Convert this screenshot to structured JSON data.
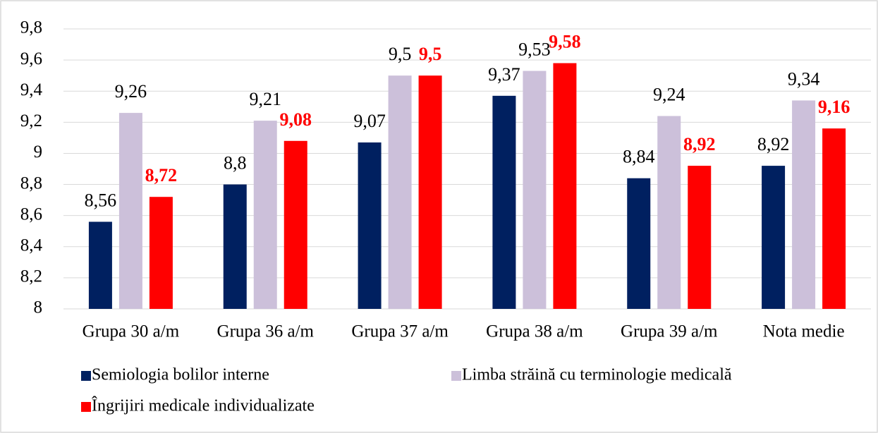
{
  "chart_data": {
    "type": "bar",
    "categories": [
      "Grupa 30 a/m",
      "Grupa 36 a/m",
      "Grupa 37 a/m",
      "Grupa 38 a/m",
      "Grupa 39 a/m",
      "Nota medie"
    ],
    "series": [
      {
        "name": "Semiologia bolilor interne",
        "color": "#002060",
        "values": [
          8.56,
          8.8,
          9.07,
          9.37,
          8.84,
          8.92
        ],
        "value_labels": [
          "8,56",
          "8,8",
          "9,07",
          "9,37",
          "8,84",
          "8,92"
        ]
      },
      {
        "name": "Limba străină cu terminologie medicală",
        "color": "#ccc0da",
        "values": [
          9.26,
          9.21,
          9.5,
          9.53,
          9.24,
          9.34
        ],
        "value_labels": [
          "9,26",
          "9,21",
          "9,5",
          "9,53",
          "9,24",
          "9,34"
        ]
      },
      {
        "name": "Îngrijiri medicale individualizate",
        "color": "#ff0000",
        "values": [
          8.72,
          9.08,
          9.5,
          9.58,
          8.92,
          9.16
        ],
        "value_labels": [
          "8,72",
          "9,08",
          "9,5",
          "9,58",
          "8,92",
          "9,16"
        ]
      }
    ],
    "ylim": [
      8,
      9.8
    ],
    "yticks": [
      8,
      {
        "value": 8.2,
        "label": "8,2"
      },
      {
        "value": 8.4,
        "label": "8,4"
      },
      {
        "value": 8.6,
        "label": "8,6"
      },
      {
        "value": 8.8,
        "label": "8,8"
      },
      9,
      {
        "value": 9.2,
        "label": "9,2"
      },
      {
        "value": 9.4,
        "label": "9,4"
      },
      {
        "value": 9.6,
        "label": "9,6"
      },
      {
        "value": 9.8,
        "label": "9,8"
      }
    ],
    "grid": true
  }
}
